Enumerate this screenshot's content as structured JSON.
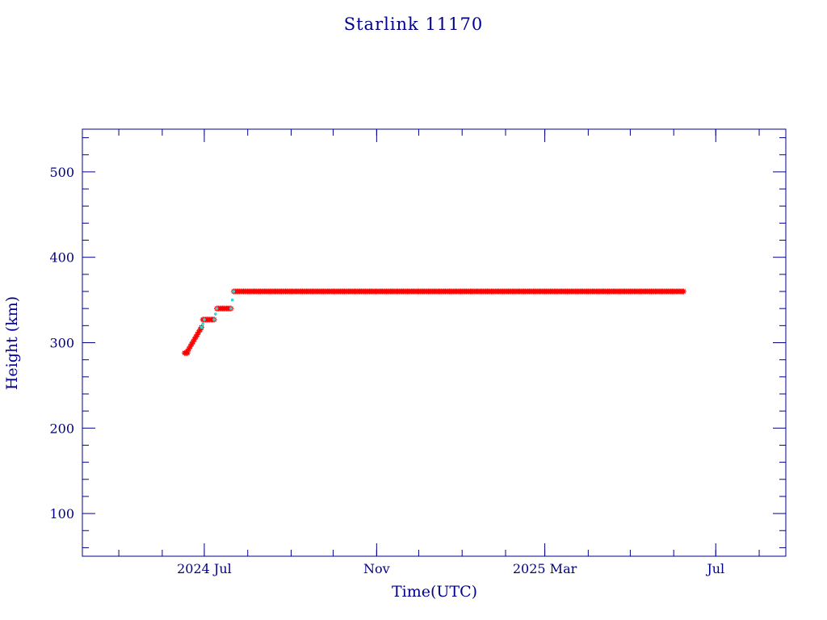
{
  "chart_data": {
    "type": "scatter",
    "title": "Starlink 11170",
    "xlabel": "Time(UTC)",
    "ylabel": "Height (km)",
    "ylim": [
      50,
      550
    ],
    "xlim": [
      "2024-04-05",
      "2025-08-20"
    ],
    "y_ticks": [
      100,
      200,
      300,
      400,
      500
    ],
    "x_ticks": [
      {
        "date": "2024-07-01",
        "label": "2024 Jul"
      },
      {
        "date": "2024-11-01",
        "label": "Nov"
      },
      {
        "date": "2025-03-01",
        "label": "2025 Mar"
      },
      {
        "date": "2025-07-01",
        "label": "Jul"
      }
    ],
    "grid": false,
    "series": [
      {
        "color": "#ff0000",
        "marker": "star",
        "segments": [
          {
            "x": [
              "2024-06-17",
              "2024-06-19"
            ],
            "y": [
              288,
              288
            ]
          },
          {
            "x": [
              "2024-06-19",
              "2024-06-29"
            ],
            "y": [
              290,
              318
            ]
          },
          {
            "x": [
              "2024-06-30",
              "2024-07-08"
            ],
            "y": [
              327,
              327
            ]
          },
          {
            "x": [
              "2024-07-10",
              "2024-07-20"
            ],
            "y": [
              340,
              340
            ]
          },
          {
            "x": [
              "2024-07-22",
              "2025-06-08"
            ],
            "y": [
              360,
              360
            ]
          }
        ]
      },
      {
        "color": "#33d6d6",
        "marker": "dot",
        "segments": [
          {
            "x": [
              "2024-06-29",
              "2024-07-01"
            ],
            "y": [
              318,
              327
            ]
          },
          {
            "x": [
              "2024-07-08",
              "2024-07-10"
            ],
            "y": [
              327,
              340
            ]
          },
          {
            "x": [
              "2024-07-20",
              "2024-07-22"
            ],
            "y": [
              340,
              360
            ]
          }
        ]
      }
    ]
  }
}
